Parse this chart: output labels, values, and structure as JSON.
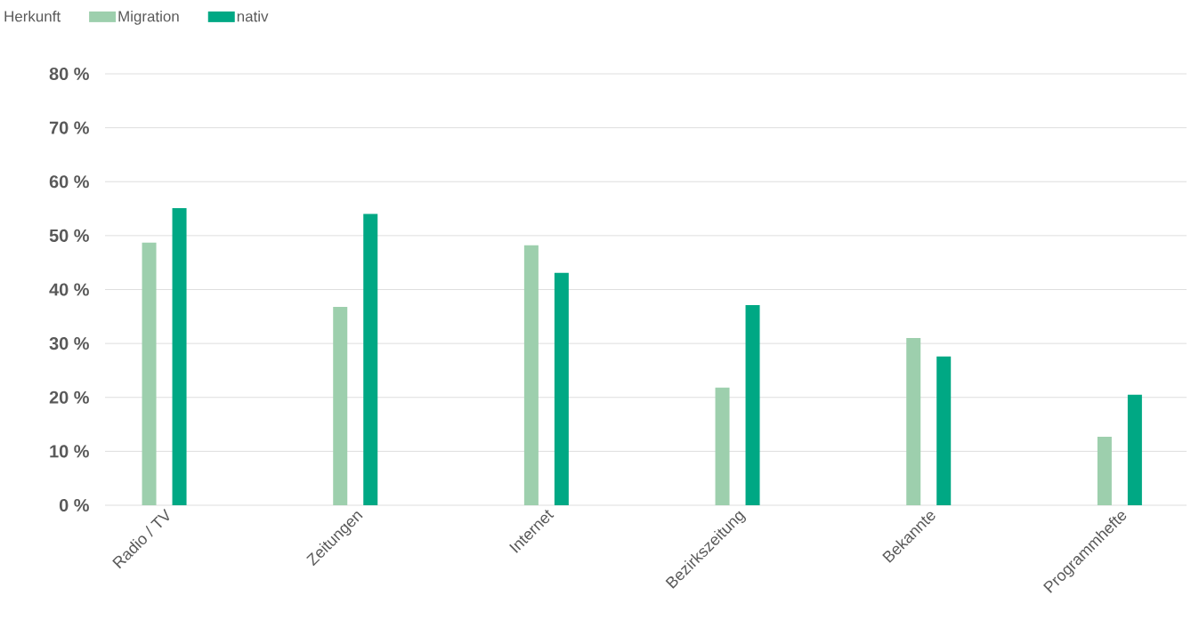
{
  "chart_data": {
    "type": "bar",
    "legend_title": "Herkunft",
    "legend": "top left",
    "grid": "y",
    "categories": [
      "Radio / TV",
      "Zeitungen",
      "Internet",
      "Bezirkszeitung",
      "Bekannte",
      "Programmhefte"
    ],
    "series": [
      {
        "name": "Migration",
        "color": "#9dcfad",
        "values": [
          48.7,
          36.8,
          48.2,
          21.8,
          31.0,
          12.7
        ]
      },
      {
        "name": "nativ",
        "color": "#00a884",
        "values": [
          55.1,
          54.0,
          43.1,
          37.1,
          27.6,
          20.5
        ]
      }
    ],
    "ylim": [
      0,
      80
    ],
    "yticks": [
      {
        "value": 0,
        "label": "0 %"
      },
      {
        "value": 10,
        "label": "10 %"
      },
      {
        "value": 20,
        "label": "20 %"
      },
      {
        "value": 30,
        "label": "30 %"
      },
      {
        "value": 40,
        "label": "40 %"
      },
      {
        "value": 50,
        "label": "50 %"
      },
      {
        "value": 60,
        "label": "60 %"
      },
      {
        "value": 70,
        "label": "70 %"
      },
      {
        "value": 80,
        "label": "80 %"
      }
    ]
  }
}
